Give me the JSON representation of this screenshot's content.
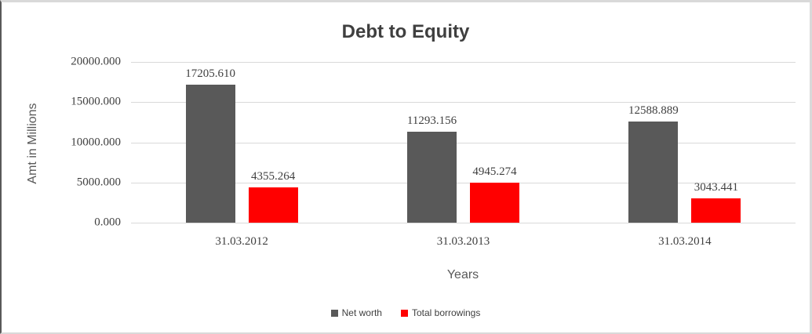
{
  "chart": {
    "title": "Debt to Equity",
    "y_axis_title": "Amt in Millions",
    "x_axis_title": "Years"
  },
  "chart_data": {
    "type": "bar",
    "title": "Debt to Equity",
    "xlabel": "Years",
    "ylabel": "Amt in Millions",
    "categories": [
      "31.03.2012",
      "31.03.2013",
      "31.03.2014"
    ],
    "series": [
      {
        "name": "Net worth",
        "color": "#595959",
        "values": [
          17205.61,
          11293.156,
          12588.889
        ],
        "labels": [
          "17205.610",
          "11293.156",
          "12588.889"
        ]
      },
      {
        "name": "Total borrowings",
        "color": "#ff0000",
        "values": [
          4355.264,
          4945.274,
          3043.441
        ],
        "labels": [
          "4355.264",
          "4945.274",
          "3043.441"
        ]
      }
    ],
    "ylim": [
      0,
      20000
    ],
    "y_ticks": [
      {
        "value": 0,
        "label": "0.000"
      },
      {
        "value": 5000,
        "label": "5000.000"
      },
      {
        "value": 10000,
        "label": "10000.000"
      },
      {
        "value": 15000,
        "label": "15000.000"
      },
      {
        "value": 20000,
        "label": "20000.000"
      }
    ],
    "grid": true,
    "legend_position": "bottom"
  }
}
